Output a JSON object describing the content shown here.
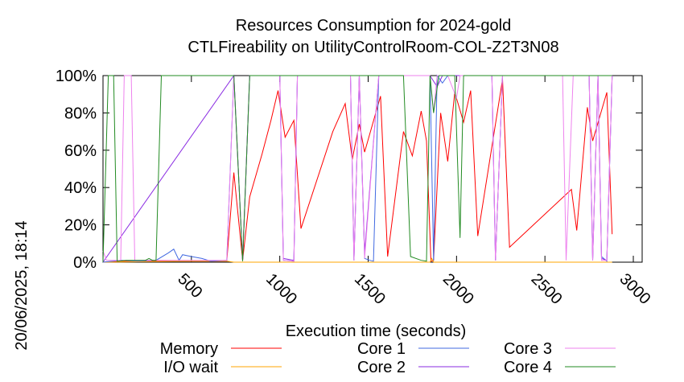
{
  "side_text": "20/06/2025, 18:14",
  "chart_data": {
    "type": "line",
    "title": [
      "Resources Consumption for 2024-gold",
      "CTLFireability on UtilityControlRoom-COL-Z2T3N08"
    ],
    "xlabel": "Execution time (seconds)",
    "ylabel": "",
    "xlim": [
      0,
      3050
    ],
    "ylim": [
      0,
      100
    ],
    "x_ticks": [
      500,
      1000,
      1500,
      2000,
      2500,
      3000
    ],
    "x_tick_labels": [
      "500",
      "1000",
      "1500",
      "2000",
      "2500",
      "3000"
    ],
    "y_ticks": [
      0,
      20,
      40,
      60,
      80,
      100
    ],
    "y_tick_labels": [
      "0%",
      "20%",
      "40%",
      "60%",
      "80%",
      "100%"
    ],
    "grid": false,
    "legend_position": "bottom",
    "series": [
      {
        "name": "Memory",
        "color": "#ff0000",
        "points": [
          [
            0,
            0
          ],
          [
            100,
            0.5
          ],
          [
            200,
            0.5
          ],
          [
            300,
            0.5
          ],
          [
            400,
            0.5
          ],
          [
            500,
            0.5
          ],
          [
            600,
            0.5
          ],
          [
            700,
            0.5
          ],
          [
            740,
            48
          ],
          [
            790,
            1
          ],
          [
            830,
            35
          ],
          [
            900,
            58
          ],
          [
            950,
            76
          ],
          [
            990,
            92
          ],
          [
            1030,
            67
          ],
          [
            1080,
            76
          ],
          [
            1120,
            18
          ],
          [
            1300,
            70
          ],
          [
            1370,
            85
          ],
          [
            1410,
            55
          ],
          [
            1450,
            74
          ],
          [
            1480,
            59
          ],
          [
            1570,
            89
          ],
          [
            1610,
            3
          ],
          [
            1700,
            70
          ],
          [
            1750,
            57
          ],
          [
            1800,
            81
          ],
          [
            1830,
            65
          ],
          [
            1855,
            0.5
          ],
          [
            1870,
            1
          ],
          [
            1910,
            80
          ],
          [
            1950,
            54
          ],
          [
            1990,
            91
          ],
          [
            2040,
            75
          ],
          [
            2080,
            92
          ],
          [
            2120,
            14
          ],
          [
            2260,
            98
          ],
          [
            2300,
            8
          ],
          [
            2650,
            39
          ],
          [
            2680,
            17
          ],
          [
            2740,
            83
          ],
          [
            2770,
            65
          ],
          [
            2850,
            91
          ],
          [
            2880,
            15
          ]
        ]
      },
      {
        "name": "I/O wait",
        "color": "#ffa500",
        "points": [
          [
            0,
            0
          ],
          [
            500,
            0.5
          ],
          [
            700,
            0.5
          ],
          [
            740,
            0
          ],
          [
            1850,
            0
          ],
          [
            1860,
            2
          ],
          [
            1870,
            0
          ],
          [
            2100,
            0
          ],
          [
            2880,
            0
          ]
        ]
      },
      {
        "name": "Core 1",
        "color": "#4169e1",
        "points": [
          [
            0,
            0
          ],
          [
            100,
            1
          ],
          [
            200,
            0.5
          ],
          [
            300,
            1
          ],
          [
            370,
            5
          ],
          [
            400,
            7
          ],
          [
            430,
            1
          ],
          [
            450,
            4
          ],
          [
            500,
            3
          ],
          [
            560,
            2
          ],
          [
            610,
            0.5
          ],
          [
            700,
            1
          ],
          [
            740,
            100
          ],
          [
            790,
            1
          ],
          [
            830,
            100
          ],
          [
            1000,
            100
          ],
          [
            1020,
            1
          ],
          [
            1080,
            0.5
          ],
          [
            1100,
            100
          ],
          [
            1400,
            100
          ],
          [
            1420,
            1
          ],
          [
            1450,
            100
          ],
          [
            1480,
            2
          ],
          [
            1510,
            1
          ],
          [
            1530,
            0.5
          ],
          [
            1560,
            100
          ],
          [
            1700,
            100
          ],
          [
            1740,
            100
          ],
          [
            1850,
            100
          ],
          [
            1870,
            1
          ],
          [
            1890,
            100
          ],
          [
            1920,
            96
          ],
          [
            1950,
            100
          ],
          [
            2200,
            100
          ],
          [
            2220,
            1
          ],
          [
            2260,
            100
          ],
          [
            2750,
            100
          ],
          [
            2770,
            1
          ],
          [
            2800,
            100
          ],
          [
            2820,
            3
          ],
          [
            2850,
            0.5
          ],
          [
            2880,
            100
          ]
        ]
      },
      {
        "name": "Core 2",
        "color": "#8a2be2",
        "points": [
          [
            0,
            0
          ],
          [
            740,
            100
          ],
          [
            790,
            1
          ],
          [
            830,
            100
          ],
          [
            1000,
            100
          ],
          [
            1020,
            2
          ],
          [
            1080,
            1
          ],
          [
            1100,
            100
          ],
          [
            1400,
            100
          ],
          [
            1420,
            1
          ],
          [
            1450,
            100
          ],
          [
            1480,
            5
          ],
          [
            1560,
            100
          ],
          [
            1850,
            100
          ],
          [
            1870,
            97
          ],
          [
            1890,
            94
          ],
          [
            1920,
            100
          ],
          [
            1950,
            100
          ],
          [
            2200,
            100
          ],
          [
            2220,
            1
          ],
          [
            2260,
            100
          ],
          [
            2750,
            100
          ],
          [
            2770,
            1
          ],
          [
            2800,
            100
          ],
          [
            2820,
            2
          ],
          [
            2850,
            1
          ],
          [
            2880,
            100
          ]
        ]
      },
      {
        "name": "Core 3",
        "color": "#ee82ee",
        "points": [
          [
            0,
            6
          ],
          [
            20,
            1
          ],
          [
            100,
            1
          ],
          [
            120,
            100
          ],
          [
            160,
            100
          ],
          [
            180,
            1
          ],
          [
            700,
            1
          ],
          [
            740,
            100
          ],
          [
            790,
            1
          ],
          [
            830,
            100
          ],
          [
            1000,
            100
          ],
          [
            1020,
            1
          ],
          [
            1080,
            0.5
          ],
          [
            1100,
            100
          ],
          [
            1400,
            100
          ],
          [
            1420,
            1
          ],
          [
            1450,
            100
          ],
          [
            1480,
            2
          ],
          [
            1560,
            100
          ],
          [
            1850,
            100
          ],
          [
            1870,
            80
          ],
          [
            1890,
            100
          ],
          [
            1950,
            100
          ],
          [
            2000,
            88
          ],
          [
            2020,
            100
          ],
          [
            2200,
            100
          ],
          [
            2220,
            1
          ],
          [
            2260,
            100
          ],
          [
            2600,
            100
          ],
          [
            2620,
            1
          ],
          [
            2660,
            100
          ],
          [
            2750,
            100
          ],
          [
            2770,
            1
          ],
          [
            2800,
            100
          ],
          [
            2820,
            1
          ],
          [
            2850,
            1
          ],
          [
            2880,
            100
          ]
        ]
      },
      {
        "name": "Core 4",
        "color": "#228b22",
        "points": [
          [
            0,
            0
          ],
          [
            30,
            100
          ],
          [
            60,
            100
          ],
          [
            80,
            0.5
          ],
          [
            130,
            1
          ],
          [
            140,
            1
          ],
          [
            180,
            1
          ],
          [
            240,
            1
          ],
          [
            260,
            2
          ],
          [
            280,
            1
          ],
          [
            300,
            1
          ],
          [
            330,
            100
          ],
          [
            700,
            100
          ],
          [
            740,
            100
          ],
          [
            790,
            0.5
          ],
          [
            830,
            100
          ],
          [
            1000,
            100
          ],
          [
            1400,
            100
          ],
          [
            1700,
            100
          ],
          [
            1740,
            3
          ],
          [
            1800,
            1
          ],
          [
            1830,
            0.5
          ],
          [
            1850,
            100
          ],
          [
            1870,
            80
          ],
          [
            1900,
            100
          ],
          [
            1990,
            100
          ],
          [
            2020,
            13
          ],
          [
            2040,
            100
          ],
          [
            2880,
            100
          ]
        ]
      }
    ]
  }
}
